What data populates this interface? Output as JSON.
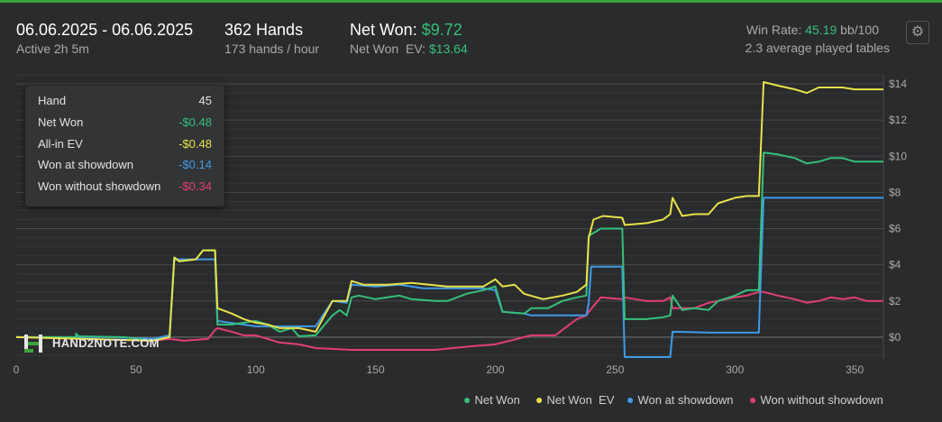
{
  "header": {
    "date_range": "06.06.2025 - 06.06.2025",
    "active": "Active 2h 5m",
    "hands": "362 Hands",
    "hands_per_hour": "173 hands / hour",
    "net_won_label": "Net Won: ",
    "net_won_value": "$9.72",
    "net_won_ev_label": "Net Won  EV: ",
    "net_won_ev_value": "$13.64",
    "win_rate_label": "Win Rate: ",
    "win_rate_value": "45.19",
    "win_rate_unit": " bb/100",
    "tables": "2.3 average played tables",
    "gear_icon": "gear-icon"
  },
  "tooltip": {
    "hand_label": "Hand",
    "hand_value": "45",
    "rows": [
      {
        "label": "Net Won",
        "value": "-$0.48",
        "color": "#35c07a"
      },
      {
        "label": "All-in EV",
        "value": "-$0.48",
        "color": "#e8e24a"
      },
      {
        "label": "Won at showdown",
        "value": "-$0.14",
        "color": "#3f9be8"
      },
      {
        "label": "Won without showdown",
        "value": "-$0.34",
        "color": "#e23f72"
      }
    ]
  },
  "logo": {
    "text": "HAND2NOTE.COM",
    "icon": "h2n-logo-icon"
  },
  "legend": [
    {
      "name": "Net Won",
      "color": "#35c07a"
    },
    {
      "name": "Net Won  EV",
      "color": "#e8e24a"
    },
    {
      "name": "Won at showdown",
      "color": "#3f9be8"
    },
    {
      "name": "Won without showdown",
      "color": "#e23f72"
    }
  ],
  "chart_data": {
    "type": "line",
    "xlim": [
      0,
      362
    ],
    "ylim": [
      -1.2,
      14.5
    ],
    "x_ticks": [
      "0",
      "50",
      "100",
      "150",
      "200",
      "250",
      "300",
      "350"
    ],
    "x_tick_values": [
      0,
      50,
      100,
      150,
      200,
      250,
      300,
      350
    ],
    "y_ticks": [
      "$0",
      "$2",
      "$4",
      "$6",
      "$8",
      "$10",
      "$12",
      "$14"
    ],
    "y_tick_values": [
      0,
      2,
      4,
      6,
      8,
      10,
      12,
      14
    ],
    "grid": true,
    "legend_position": "bottom-right",
    "series": [
      {
        "name": "Net Won",
        "color": "#35c07a",
        "points": [
          [
            0,
            0
          ],
          [
            25,
            0
          ],
          [
            25,
            0.2
          ],
          [
            26,
            0.05
          ],
          [
            45,
            0
          ],
          [
            57,
            -0.2
          ],
          [
            64,
            0
          ],
          [
            66,
            4.4
          ],
          [
            68,
            4.2
          ],
          [
            75,
            4.3
          ],
          [
            78,
            4.8
          ],
          [
            83,
            4.8
          ],
          [
            84,
            0.7
          ],
          [
            90,
            0.7
          ],
          [
            100,
            0.9
          ],
          [
            105,
            0.7
          ],
          [
            110,
            0.3
          ],
          [
            115,
            0.5
          ],
          [
            118,
            0.05
          ],
          [
            125,
            0.1
          ],
          [
            132,
            1.2
          ],
          [
            135,
            1.5
          ],
          [
            138,
            1.2
          ],
          [
            140,
            2.2
          ],
          [
            143,
            2.3
          ],
          [
            150,
            2.1
          ],
          [
            160,
            2.3
          ],
          [
            165,
            2.1
          ],
          [
            175,
            2.0
          ],
          [
            180,
            2.0
          ],
          [
            188,
            2.4
          ],
          [
            195,
            2.6
          ],
          [
            200,
            2.8
          ],
          [
            203,
            1.4
          ],
          [
            212,
            1.3
          ],
          [
            215,
            1.6
          ],
          [
            222,
            1.6
          ],
          [
            228,
            2.0
          ],
          [
            234,
            2.2
          ],
          [
            238,
            2.3
          ],
          [
            239,
            5.6
          ],
          [
            244,
            6.0
          ],
          [
            253,
            6.0
          ],
          [
            254,
            1.0
          ],
          [
            263,
            1.0
          ],
          [
            270,
            1.1
          ],
          [
            273,
            1.2
          ],
          [
            274,
            2.3
          ],
          [
            278,
            1.5
          ],
          [
            283,
            1.6
          ],
          [
            289,
            1.5
          ],
          [
            293,
            2.0
          ],
          [
            300,
            2.3
          ],
          [
            305,
            2.6
          ],
          [
            310,
            2.6
          ],
          [
            312,
            10.2
          ],
          [
            318,
            10.1
          ],
          [
            325,
            9.9
          ],
          [
            330,
            9.6
          ],
          [
            335,
            9.7
          ],
          [
            340,
            9.9
          ],
          [
            345,
            9.9
          ],
          [
            350,
            9.7
          ],
          [
            362,
            9.7
          ]
        ]
      },
      {
        "name": "Net Won  EV",
        "color": "#e8e24a",
        "points": [
          [
            0,
            0
          ],
          [
            57,
            -0.2
          ],
          [
            64,
            0
          ],
          [
            66,
            4.4
          ],
          [
            68,
            4.2
          ],
          [
            75,
            4.3
          ],
          [
            78,
            4.8
          ],
          [
            83,
            4.8
          ],
          [
            84,
            1.6
          ],
          [
            90,
            1.3
          ],
          [
            95,
            1.0
          ],
          [
            100,
            0.8
          ],
          [
            105,
            0.7
          ],
          [
            110,
            0.5
          ],
          [
            118,
            0.5
          ],
          [
            125,
            0.3
          ],
          [
            132,
            2.0
          ],
          [
            138,
            2.0
          ],
          [
            140,
            3.1
          ],
          [
            145,
            2.9
          ],
          [
            155,
            2.9
          ],
          [
            165,
            3.0
          ],
          [
            180,
            2.8
          ],
          [
            195,
            2.8
          ],
          [
            200,
            3.2
          ],
          [
            203,
            2.8
          ],
          [
            208,
            2.9
          ],
          [
            212,
            2.4
          ],
          [
            220,
            2.1
          ],
          [
            228,
            2.3
          ],
          [
            234,
            2.5
          ],
          [
            238,
            2.9
          ],
          [
            239,
            5.5
          ],
          [
            241,
            6.5
          ],
          [
            245,
            6.7
          ],
          [
            253,
            6.6
          ],
          [
            254,
            6.2
          ],
          [
            263,
            6.3
          ],
          [
            270,
            6.5
          ],
          [
            273,
            6.8
          ],
          [
            274,
            7.7
          ],
          [
            278,
            6.7
          ],
          [
            283,
            6.8
          ],
          [
            289,
            6.8
          ],
          [
            293,
            7.4
          ],
          [
            300,
            7.7
          ],
          [
            305,
            7.8
          ],
          [
            310,
            7.8
          ],
          [
            312,
            14.1
          ],
          [
            318,
            13.9
          ],
          [
            325,
            13.7
          ],
          [
            330,
            13.5
          ],
          [
            335,
            13.8
          ],
          [
            345,
            13.8
          ],
          [
            350,
            13.7
          ],
          [
            362,
            13.7
          ]
        ]
      },
      {
        "name": "Won at showdown",
        "color": "#3f9be8",
        "points": [
          [
            0,
            0
          ],
          [
            40,
            0
          ],
          [
            57,
            -0.1
          ],
          [
            64,
            0.1
          ],
          [
            66,
            4.3
          ],
          [
            83,
            4.3
          ],
          [
            84,
            0.9
          ],
          [
            100,
            0.6
          ],
          [
            110,
            0.6
          ],
          [
            118,
            0.6
          ],
          [
            125,
            0.6
          ],
          [
            132,
            2.0
          ],
          [
            138,
            1.9
          ],
          [
            140,
            2.9
          ],
          [
            150,
            2.8
          ],
          [
            160,
            2.9
          ],
          [
            170,
            2.7
          ],
          [
            195,
            2.7
          ],
          [
            200,
            2.6
          ],
          [
            203,
            1.4
          ],
          [
            212,
            1.3
          ],
          [
            215,
            1.2
          ],
          [
            234,
            1.2
          ],
          [
            238,
            1.2
          ],
          [
            239,
            1.9
          ],
          [
            240,
            3.9
          ],
          [
            250,
            3.9
          ],
          [
            253,
            3.9
          ],
          [
            254,
            -1.1
          ],
          [
            260,
            -1.1
          ],
          [
            273,
            -1.1
          ],
          [
            274,
            0.3
          ],
          [
            290,
            0.25
          ],
          [
            310,
            0.25
          ],
          [
            312,
            7.7
          ],
          [
            362,
            7.7
          ]
        ]
      },
      {
        "name": "Won without showdown",
        "color": "#e23f72",
        "points": [
          [
            0,
            0
          ],
          [
            57,
            -0.2
          ],
          [
            64,
            -0.1
          ],
          [
            70,
            -0.2
          ],
          [
            80,
            -0.1
          ],
          [
            83,
            0.4
          ],
          [
            84,
            0.5
          ],
          [
            90,
            0.3
          ],
          [
            95,
            0.1
          ],
          [
            100,
            0.1
          ],
          [
            110,
            -0.3
          ],
          [
            118,
            -0.4
          ],
          [
            125,
            -0.6
          ],
          [
            140,
            -0.7
          ],
          [
            160,
            -0.7
          ],
          [
            175,
            -0.7
          ],
          [
            190,
            -0.5
          ],
          [
            200,
            -0.4
          ],
          [
            215,
            0.1
          ],
          [
            225,
            0.1
          ],
          [
            234,
            1.0
          ],
          [
            238,
            1.2
          ],
          [
            239,
            1.4
          ],
          [
            244,
            2.2
          ],
          [
            253,
            2.1
          ],
          [
            254,
            2.2
          ],
          [
            263,
            2.0
          ],
          [
            270,
            2.0
          ],
          [
            273,
            2.2
          ],
          [
            274,
            1.6
          ],
          [
            283,
            1.6
          ],
          [
            289,
            1.9
          ],
          [
            300,
            2.2
          ],
          [
            305,
            2.3
          ],
          [
            310,
            2.5
          ],
          [
            312,
            2.5
          ],
          [
            318,
            2.3
          ],
          [
            325,
            2.1
          ],
          [
            330,
            1.9
          ],
          [
            335,
            2.0
          ],
          [
            340,
            2.2
          ],
          [
            345,
            2.1
          ],
          [
            350,
            2.2
          ],
          [
            355,
            2.0
          ],
          [
            362,
            2.0
          ]
        ]
      }
    ]
  }
}
